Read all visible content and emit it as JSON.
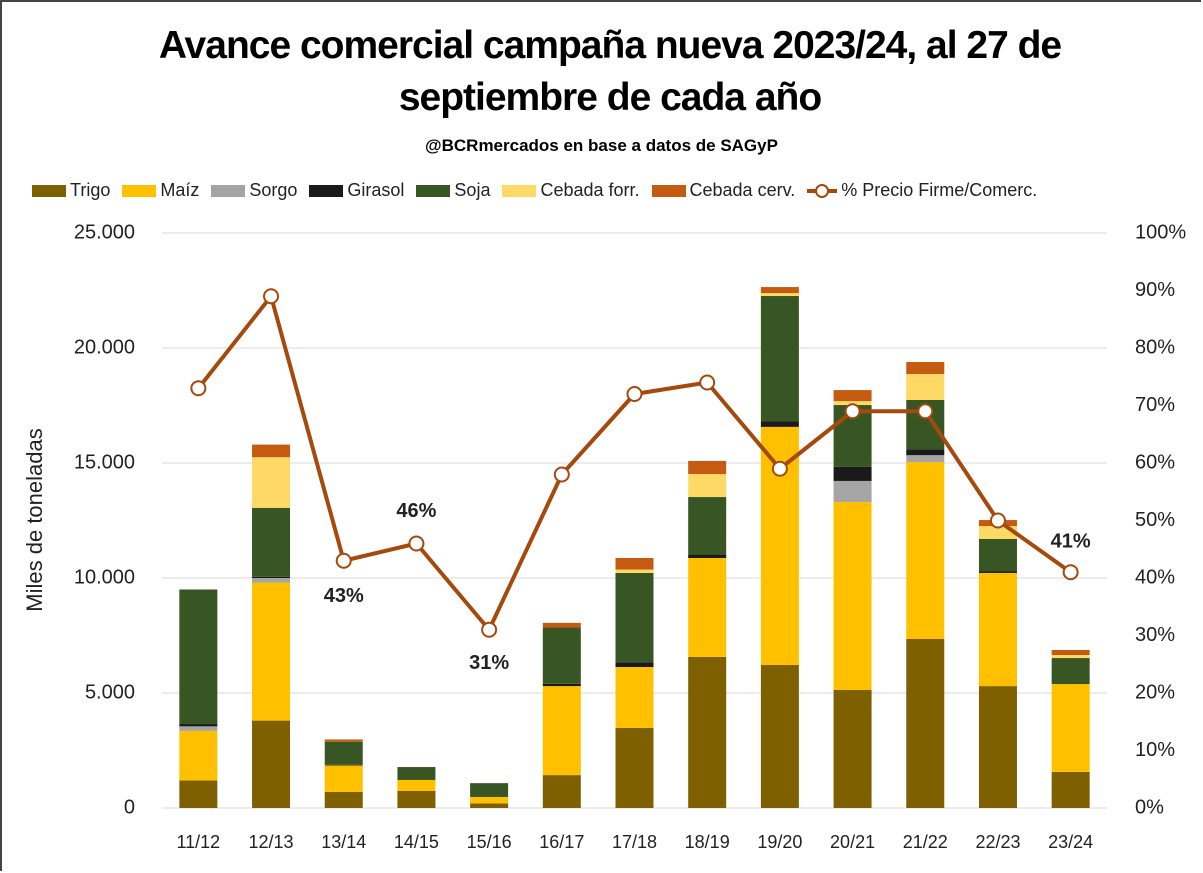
{
  "chart_data": {
    "type": "bar",
    "stacked": true,
    "title": "Avance comercial campaña nueva 2023/24, al 27 de septiembre de cada año",
    "subtitle": "@BCRmercados en base a datos de SAGyP",
    "y_label": "Miles de toneladas",
    "categories": [
      "11/12",
      "12/13",
      "13/14",
      "14/15",
      "15/16",
      "16/17",
      "17/18",
      "18/19",
      "19/20",
      "20/21",
      "21/22",
      "22/23",
      "23/24"
    ],
    "series": [
      {
        "name": "Trigo",
        "color": "#7f6000",
        "values": [
          1200,
          3800,
          700,
          740,
          200,
          1430,
          3480,
          6570,
          6220,
          5130,
          7350,
          5300,
          1570
        ]
      },
      {
        "name": "Maíz",
        "color": "#ffc000",
        "values": [
          2150,
          6000,
          1150,
          480,
          280,
          3870,
          2650,
          4300,
          10350,
          8170,
          7690,
          4920,
          3820
        ]
      },
      {
        "name": "Sorgo",
        "color": "#a5a5a5",
        "values": [
          200,
          200,
          0,
          0,
          0,
          0,
          0,
          0,
          0,
          920,
          300,
          0,
          0
        ]
      },
      {
        "name": "Girasol",
        "color": "#1a1a1a",
        "values": [
          100,
          50,
          30,
          0,
          0,
          100,
          200,
          130,
          250,
          610,
          260,
          80,
          0
        ]
      },
      {
        "name": "Soja",
        "color": "#375623",
        "values": [
          5850,
          3000,
          1000,
          560,
          600,
          2450,
          3890,
          2520,
          5440,
          2690,
          2140,
          1400,
          1130
        ]
      },
      {
        "name": "Cebada forr.",
        "color": "#ffd966",
        "values": [
          0,
          2200,
          0,
          0,
          0,
          0,
          150,
          1000,
          130,
          170,
          1130,
          560,
          130
        ]
      },
      {
        "name": "Cebada cerv.",
        "color": "#c55a11",
        "values": [
          0,
          550,
          100,
          0,
          0,
          200,
          500,
          570,
          260,
          480,
          520,
          260,
          220
        ]
      },
      {
        "name": "% Precio Firme/Comerc.",
        "type": "line",
        "axis": "y2",
        "color": "#a5490c",
        "values": [
          73,
          89,
          43,
          46,
          31,
          58,
          72,
          74,
          59,
          69,
          69,
          50,
          41
        ],
        "value_labels": [
          null,
          null,
          "43%",
          "46%",
          "31%",
          null,
          null,
          null,
          null,
          null,
          null,
          null,
          "41%"
        ]
      }
    ],
    "ylim": [
      0,
      25000
    ],
    "yticks": [
      0,
      {
        "value": 5000,
        "label": "5.000"
      },
      {
        "value": 10000,
        "label": "10.000"
      },
      {
        "value": 15000,
        "label": "15.000"
      },
      {
        "value": 20000,
        "label": "20.000"
      },
      {
        "value": 25000,
        "label": "25.000"
      }
    ],
    "y2lim": [
      0,
      100
    ],
    "y2ticks": [
      {
        "value": 0,
        "label": "0%"
      },
      {
        "value": 10,
        "label": "10%"
      },
      {
        "value": 20,
        "label": "20%"
      },
      {
        "value": 30,
        "label": "30%"
      },
      {
        "value": 40,
        "label": "40%"
      },
      {
        "value": 50,
        "label": "50%"
      },
      {
        "value": 60,
        "label": "60%"
      },
      {
        "value": 70,
        "label": "70%"
      },
      {
        "value": 80,
        "label": "80%"
      },
      {
        "value": 90,
        "label": "90%"
      },
      {
        "value": 100,
        "label": "100%"
      }
    ],
    "grid": true,
    "legend": "top"
  }
}
